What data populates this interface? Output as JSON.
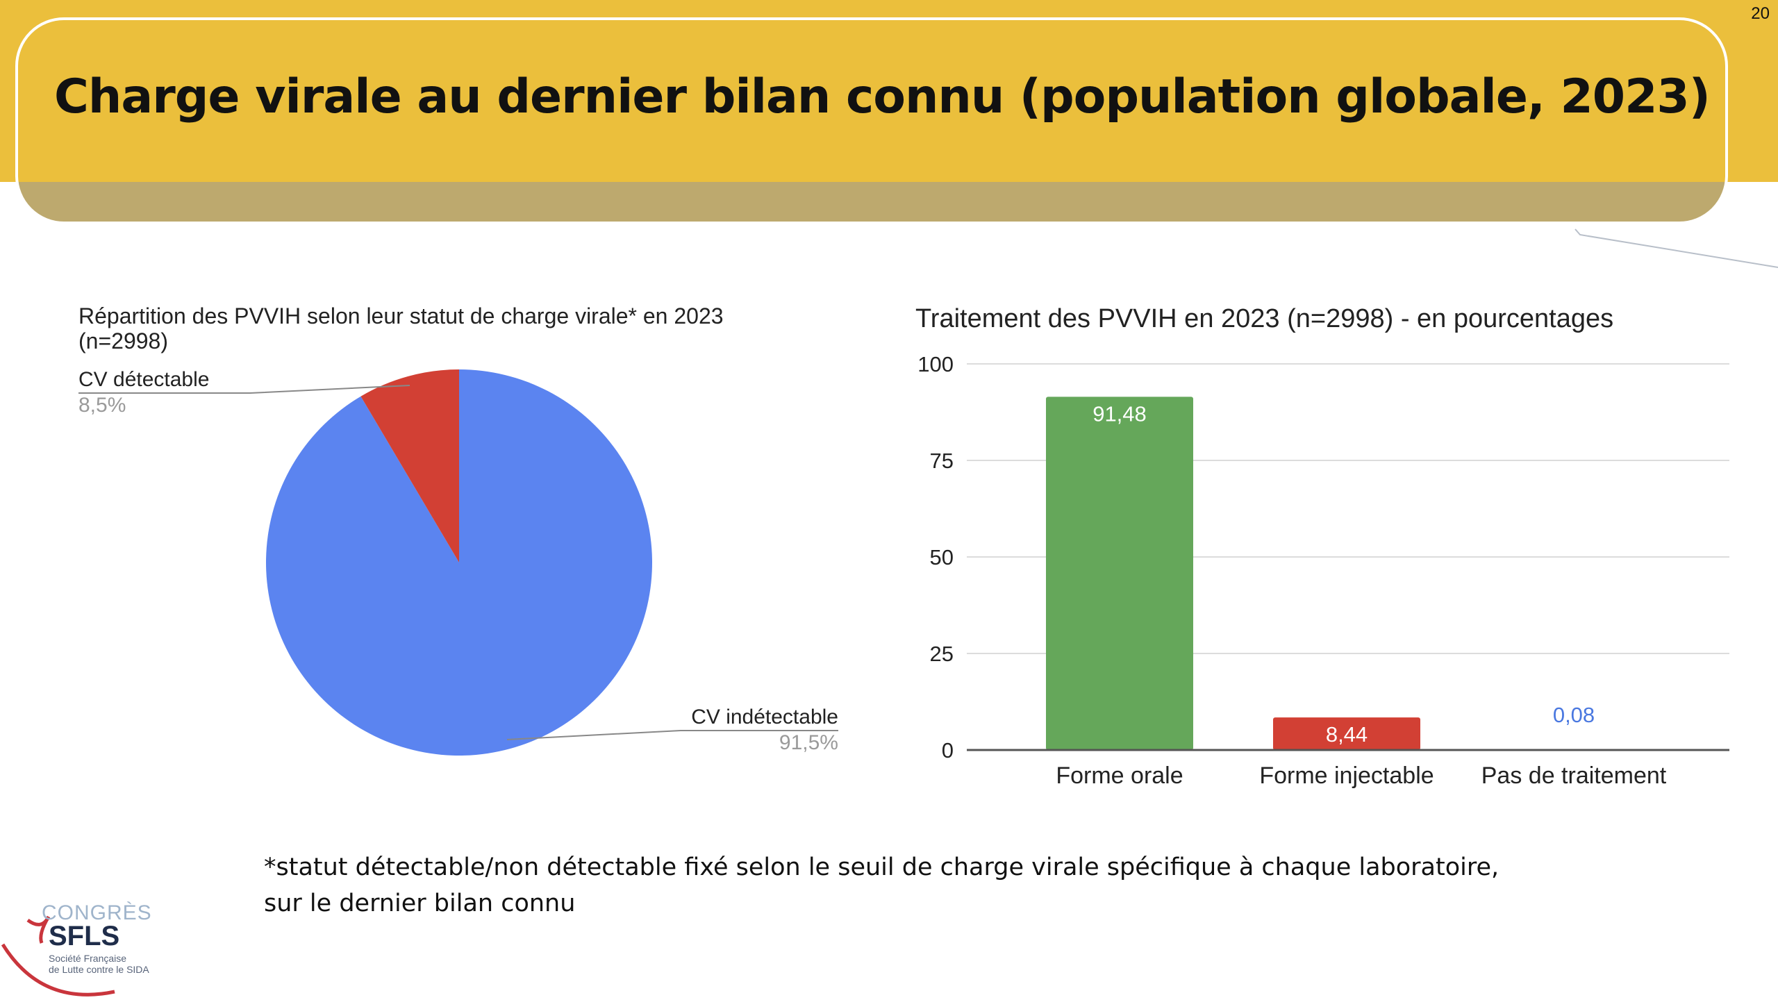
{
  "header": {
    "title": "Charge virale au dernier bilan connu (population globale, 2023)",
    "page_number": "20"
  },
  "colors": {
    "header": "#ebbf3c",
    "pie_undetectable": "#5b84f0",
    "pie_detectable": "#d24034",
    "bar_oral": "#65a75a",
    "bar_injectable": "#d24034",
    "bar_none_label": "#4a78e0"
  },
  "chart_data": [
    {
      "type": "pie",
      "title_line1": "Répartition des PVVIH selon leur statut de charge virale* en 2023",
      "title_line2": "(n=2998)",
      "slices": [
        {
          "label": "CV détectable",
          "value": 8.5,
          "value_label": "8,5%"
        },
        {
          "label": "CV indétectable",
          "value": 91.5,
          "value_label": "91,5%"
        }
      ]
    },
    {
      "type": "bar",
      "title": "Traitement des PVVIH en 2023 (n=2998) - en pourcentages",
      "categories": [
        "Forme orale",
        "Forme injectable",
        "Pas de traitement"
      ],
      "values": [
        91.48,
        8.44,
        0.08
      ],
      "value_labels": [
        "91,48",
        "8,44",
        "0,08"
      ],
      "ylim": [
        0,
        100
      ],
      "yticks": [
        0,
        25,
        50,
        75,
        100
      ],
      "ytick_labels": [
        "0",
        "25",
        "50",
        "75",
        "100"
      ],
      "grid": true
    }
  ],
  "footnote": {
    "line1": "*statut détectable/non détectable fixé selon le seuil de charge virale spécifique à chaque laboratoire,",
    "line2": "sur le dernier bilan connu"
  },
  "logo": {
    "line1": "CONGRÈS",
    "line2": "SFLS",
    "line3": "Société Française",
    "line4": "de Lutte contre le SIDA"
  }
}
